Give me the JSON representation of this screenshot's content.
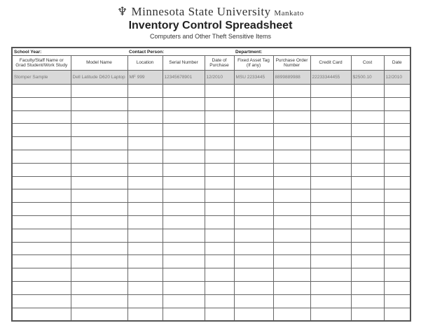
{
  "header": {
    "university": "Minnesota State University",
    "campus": "Mankato",
    "title": "Inventory Control Spreadsheet",
    "subtitle": "Computers and Other Theft Sensitive Items"
  },
  "info": {
    "school_year": "School Year:",
    "contact_person": "Contact Person:",
    "department": "Department:"
  },
  "columns": [
    "Faculty/Staff Name or Grad Student/Work Study",
    "Model Name",
    "Location",
    "Serial Number",
    "Date of Purchase",
    "Fixed Asset Tag (If any)",
    "Purchase Order Number",
    "Credit Card",
    "Cost",
    "Date"
  ],
  "sample_row": [
    "Stomper Sample",
    "Dell Latitude D620 Laptop",
    "MF 999",
    "12345678901",
    "12/2010",
    "MSU 2233445",
    "8899889988",
    "22233344455",
    "$2500.10",
    "12/2010"
  ]
}
